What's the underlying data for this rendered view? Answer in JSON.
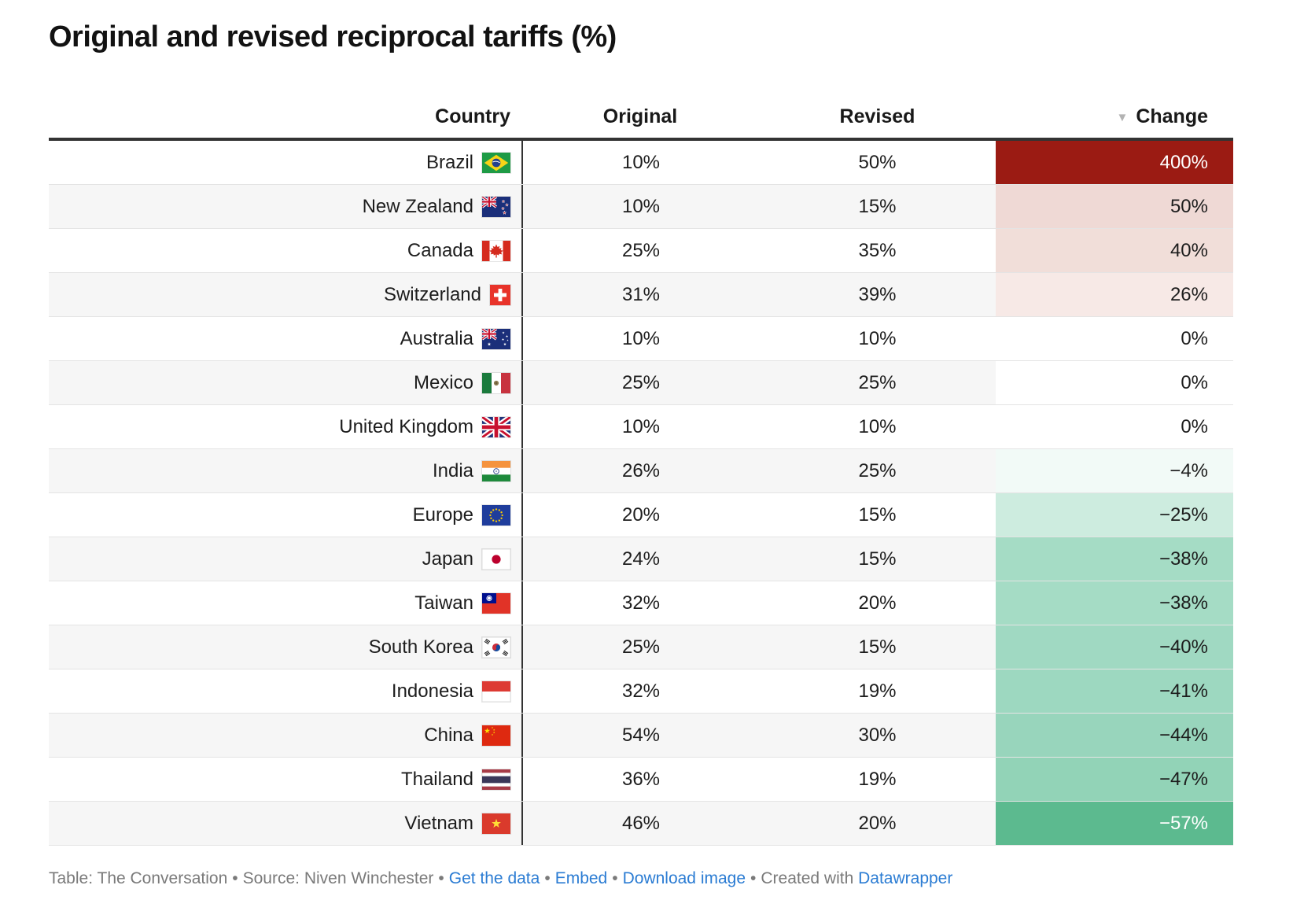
{
  "title": "Original and revised reciprocal tariffs (%)",
  "icons": {
    "sort_desc": "▼"
  },
  "chart_data": {
    "type": "table",
    "title": "Original and revised reciprocal tariffs (%)",
    "columns": [
      "Country",
      "Original",
      "Revised",
      "Change"
    ],
    "sort": {
      "column": "Change",
      "direction": "descending"
    },
    "rows": [
      {
        "country": "Brazil",
        "flag": "brazil",
        "original_pct": 10,
        "revised_pct": 50,
        "change_pct": 400
      },
      {
        "country": "New Zealand",
        "flag": "new-zealand",
        "original_pct": 10,
        "revised_pct": 15,
        "change_pct": 50
      },
      {
        "country": "Canada",
        "flag": "canada",
        "original_pct": 25,
        "revised_pct": 35,
        "change_pct": 40
      },
      {
        "country": "Switzerland",
        "flag": "switzerland",
        "original_pct": 31,
        "revised_pct": 39,
        "change_pct": 26
      },
      {
        "country": "Australia",
        "flag": "australia",
        "original_pct": 10,
        "revised_pct": 10,
        "change_pct": 0
      },
      {
        "country": "Mexico",
        "flag": "mexico",
        "original_pct": 25,
        "revised_pct": 25,
        "change_pct": 0
      },
      {
        "country": "United Kingdom",
        "flag": "united-kingdom",
        "original_pct": 10,
        "revised_pct": 10,
        "change_pct": 0
      },
      {
        "country": "India",
        "flag": "india",
        "original_pct": 26,
        "revised_pct": 25,
        "change_pct": -4
      },
      {
        "country": "Europe",
        "flag": "europe",
        "original_pct": 20,
        "revised_pct": 15,
        "change_pct": -25
      },
      {
        "country": "Japan",
        "flag": "japan",
        "original_pct": 24,
        "revised_pct": 15,
        "change_pct": -38
      },
      {
        "country": "Taiwan",
        "flag": "taiwan",
        "original_pct": 32,
        "revised_pct": 20,
        "change_pct": -38
      },
      {
        "country": "South Korea",
        "flag": "south-korea",
        "original_pct": 25,
        "revised_pct": 15,
        "change_pct": -40
      },
      {
        "country": "Indonesia",
        "flag": "indonesia",
        "original_pct": 32,
        "revised_pct": 19,
        "change_pct": -41
      },
      {
        "country": "China",
        "flag": "china",
        "original_pct": 54,
        "revised_pct": 30,
        "change_pct": -44
      },
      {
        "country": "Thailand",
        "flag": "thailand",
        "original_pct": 36,
        "revised_pct": 19,
        "change_pct": -47
      },
      {
        "country": "Vietnam",
        "flag": "vietnam",
        "original_pct": 46,
        "revised_pct": 20,
        "change_pct": -57
      }
    ]
  },
  "table": {
    "columns": [
      {
        "label": "Country"
      },
      {
        "label": "Original"
      },
      {
        "label": "Revised"
      },
      {
        "label": "Change"
      }
    ],
    "rows": [
      {
        "country": "Brazil",
        "flag": "br",
        "original": "10%",
        "revised": "50%",
        "change": "400%",
        "change_bg": "#9b1b13",
        "change_fg": "#ffffff"
      },
      {
        "country": "New Zealand",
        "flag": "nz",
        "original": "10%",
        "revised": "15%",
        "change": "50%",
        "change_bg": "#efd9d5",
        "change_fg": "#1d1d1d"
      },
      {
        "country": "Canada",
        "flag": "ca",
        "original": "25%",
        "revised": "35%",
        "change": "40%",
        "change_bg": "#f1ded9",
        "change_fg": "#1d1d1d"
      },
      {
        "country": "Switzerland",
        "flag": "ch",
        "original": "31%",
        "revised": "39%",
        "change": "26%",
        "change_bg": "#f7e9e6",
        "change_fg": "#1d1d1d"
      },
      {
        "country": "Australia",
        "flag": "au",
        "original": "10%",
        "revised": "10%",
        "change": "0%",
        "change_bg": "#ffffff",
        "change_fg": "#1d1d1d"
      },
      {
        "country": "Mexico",
        "flag": "mx",
        "original": "25%",
        "revised": "25%",
        "change": "0%",
        "change_bg": "#ffffff",
        "change_fg": "#1d1d1d"
      },
      {
        "country": "United Kingdom",
        "flag": "gb",
        "original": "10%",
        "revised": "10%",
        "change": "0%",
        "change_bg": "#ffffff",
        "change_fg": "#1d1d1d"
      },
      {
        "country": "India",
        "flag": "in",
        "original": "26%",
        "revised": "25%",
        "change": "−4%",
        "change_bg": "#f2faf7",
        "change_fg": "#1d1d1d"
      },
      {
        "country": "Europe",
        "flag": "eu",
        "original": "20%",
        "revised": "15%",
        "change": "−25%",
        "change_bg": "#cdecdf",
        "change_fg": "#1d1d1d"
      },
      {
        "country": "Japan",
        "flag": "jp",
        "original": "24%",
        "revised": "15%",
        "change": "−38%",
        "change_bg": "#a5dcc5",
        "change_fg": "#1d1d1d"
      },
      {
        "country": "Taiwan",
        "flag": "tw",
        "original": "32%",
        "revised": "20%",
        "change": "−38%",
        "change_bg": "#a5dcc5",
        "change_fg": "#1d1d1d"
      },
      {
        "country": "South Korea",
        "flag": "kr",
        "original": "25%",
        "revised": "15%",
        "change": "−40%",
        "change_bg": "#a0d9c2",
        "change_fg": "#1d1d1d"
      },
      {
        "country": "Indonesia",
        "flag": "id",
        "original": "32%",
        "revised": "19%",
        "change": "−41%",
        "change_bg": "#9dd8c0",
        "change_fg": "#1d1d1d"
      },
      {
        "country": "China",
        "flag": "cn",
        "original": "54%",
        "revised": "30%",
        "change": "−44%",
        "change_bg": "#98d5bc",
        "change_fg": "#1d1d1d"
      },
      {
        "country": "Thailand",
        "flag": "th",
        "original": "36%",
        "revised": "19%",
        "change": "−47%",
        "change_bg": "#92d3b7",
        "change_fg": "#1d1d1d"
      },
      {
        "country": "Vietnam",
        "flag": "vn",
        "original": "46%",
        "revised": "20%",
        "change": "−57%",
        "change_bg": "#5cba8f",
        "change_fg": "#ffffff"
      }
    ]
  },
  "footer": {
    "attribution": "Table: The Conversation",
    "separator": "•",
    "source": "Source: Niven Winchester",
    "get_data_label": "Get the data",
    "embed_label": "Embed",
    "download_label": "Download image",
    "created_with": "Created with",
    "tool_name": "Datawrapper"
  },
  "colors": {
    "max_increase": "#9b1b13",
    "max_decrease": "#5cba8f",
    "header_rule": "#333333",
    "row_alt": "#f6f6f6",
    "link_blue": "#2b7cd3"
  }
}
